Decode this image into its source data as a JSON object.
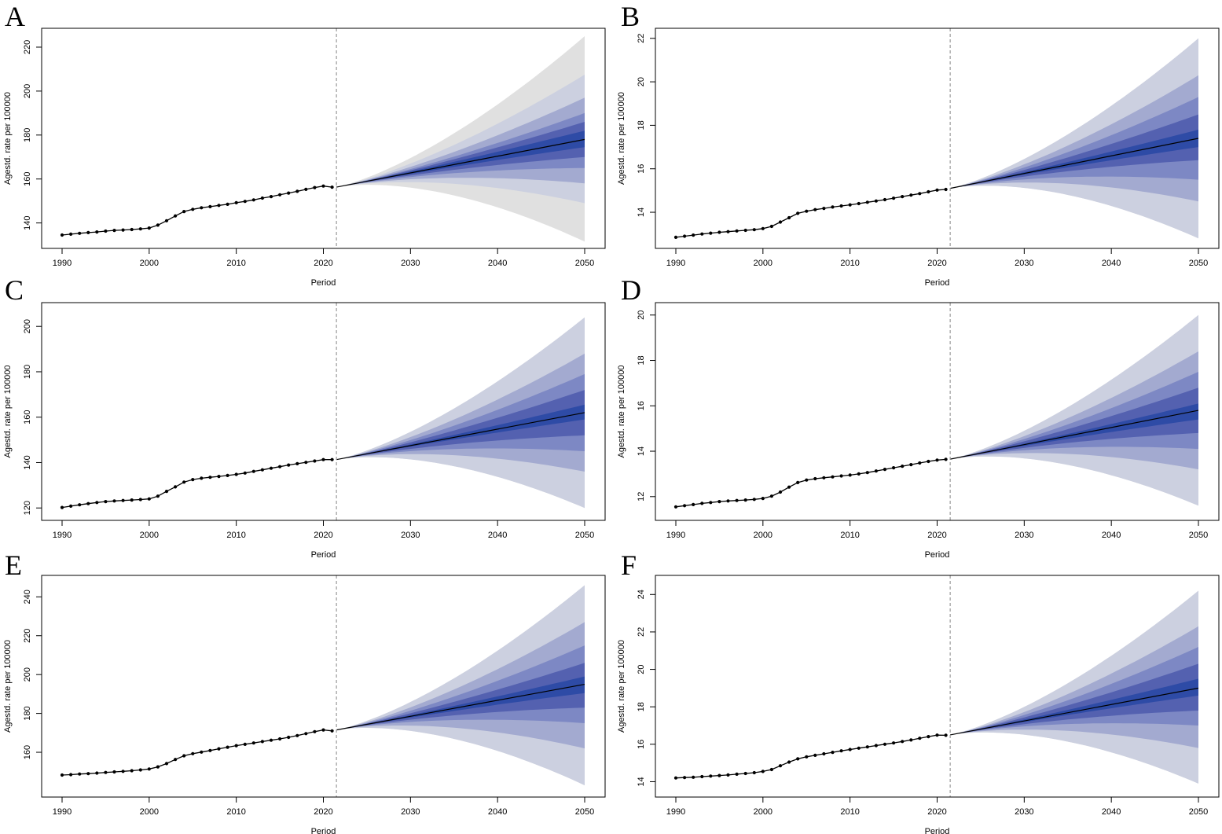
{
  "colors": {
    "band_outer": "#e0e0e0",
    "band_80": "#ccd0e0",
    "band_60": "#a3aad0",
    "band_40": "#7d88c4",
    "band_20": "#5461b0",
    "band_inner": "#2e4ba6",
    "line": "#000000",
    "vline": "#9a9a9a",
    "frame": "#000000"
  },
  "chart_data": [
    {
      "panel": "A",
      "type": "line",
      "xlabel": "Period",
      "ylabel": "Agestd. rate per 100000",
      "xlim": [
        1990,
        2050
      ],
      "ylim": [
        132,
        225
      ],
      "xticks": [
        1990,
        2000,
        2010,
        2020,
        2030,
        2040,
        2050
      ],
      "yticks": [
        140,
        160,
        180,
        200,
        220
      ],
      "projection_start": 2021.5,
      "observed": {
        "x": [
          1990,
          1991,
          1992,
          1993,
          1994,
          1995,
          1996,
          1997,
          1998,
          1999,
          2000,
          2001,
          2002,
          2003,
          2004,
          2005,
          2006,
          2007,
          2008,
          2009,
          2010,
          2011,
          2012,
          2013,
          2014,
          2015,
          2016,
          2017,
          2018,
          2019,
          2020,
          2021
        ],
        "y": [
          134.5,
          134.9,
          135.3,
          135.6,
          135.9,
          136.3,
          136.6,
          136.8,
          137.0,
          137.3,
          137.7,
          139.0,
          141.0,
          143.2,
          145.2,
          146.2,
          146.9,
          147.4,
          148.0,
          148.5,
          149.2,
          149.8,
          150.5,
          151.3,
          152.0,
          152.8,
          153.6,
          154.4,
          155.3,
          156.1,
          156.8,
          156.3
        ]
      },
      "forecast": {
        "x": [
          2021.5,
          2050
        ],
        "y": [
          156.3,
          178.0
        ],
        "intervals_at_2050": [
          {
            "lower": 174.5,
            "upper": 182.0
          },
          {
            "lower": 170.0,
            "upper": 186.0
          },
          {
            "lower": 165.0,
            "upper": 190.0
          },
          {
            "lower": 158.0,
            "upper": 197.0
          },
          {
            "lower": 149.0,
            "upper": 207.5
          },
          {
            "lower": 131.5,
            "upper": 225.0
          }
        ]
      }
    },
    {
      "panel": "B",
      "type": "line",
      "xlabel": "Period",
      "ylabel": "Agestd. rate per 100000",
      "xlim": [
        1990,
        2050
      ],
      "ylim": [
        12.7,
        22.1
      ],
      "xticks": [
        1990,
        2000,
        2010,
        2020,
        2030,
        2040,
        2050
      ],
      "yticks": [
        14,
        16,
        18,
        20,
        22
      ],
      "projection_start": 2021.5,
      "observed": {
        "x": [
          1990,
          1991,
          1992,
          1993,
          1994,
          1995,
          1996,
          1997,
          1998,
          1999,
          2000,
          2001,
          2002,
          2003,
          2004,
          2005,
          2006,
          2007,
          2008,
          2009,
          2010,
          2011,
          2012,
          2013,
          2014,
          2015,
          2016,
          2017,
          2018,
          2019,
          2020,
          2021
        ],
        "y": [
          12.85,
          12.9,
          12.95,
          13.0,
          13.04,
          13.08,
          13.11,
          13.14,
          13.17,
          13.2,
          13.25,
          13.35,
          13.55,
          13.75,
          13.95,
          14.05,
          14.12,
          14.18,
          14.24,
          14.29,
          14.34,
          14.4,
          14.46,
          14.52,
          14.58,
          14.65,
          14.72,
          14.79,
          14.86,
          14.94,
          15.02,
          15.05
        ]
      },
      "forecast": {
        "x": [
          2021.5,
          2050
        ],
        "y": [
          15.1,
          17.4
        ],
        "intervals_at_2050": [
          {
            "lower": 17.0,
            "upper": 17.8
          },
          {
            "lower": 16.4,
            "upper": 18.5
          },
          {
            "lower": 15.5,
            "upper": 19.3
          },
          {
            "lower": 14.5,
            "upper": 20.3
          },
          {
            "lower": 12.8,
            "upper": 22.0
          },
          {
            "lower": 12.8,
            "upper": 22.0
          }
        ]
      }
    },
    {
      "panel": "C",
      "type": "line",
      "xlabel": "Period",
      "ylabel": "Agestd. rate per 100000",
      "xlim": [
        1990,
        2050
      ],
      "ylim": [
        118,
        207
      ],
      "xticks": [
        1990,
        2000,
        2010,
        2020,
        2030,
        2040,
        2050
      ],
      "yticks": [
        120,
        140,
        160,
        180,
        200
      ],
      "projection_start": 2021.5,
      "observed": {
        "x": [
          1990,
          1991,
          1992,
          1993,
          1994,
          1995,
          1996,
          1997,
          1998,
          1999,
          2000,
          2001,
          2002,
          2003,
          2004,
          2005,
          2006,
          2007,
          2008,
          2009,
          2010,
          2011,
          2012,
          2013,
          2014,
          2015,
          2016,
          2017,
          2018,
          2019,
          2020,
          2021
        ],
        "y": [
          120.2,
          120.8,
          121.4,
          121.9,
          122.4,
          122.8,
          123.1,
          123.3,
          123.5,
          123.7,
          124.0,
          125.2,
          127.3,
          129.3,
          131.4,
          132.5,
          133.1,
          133.5,
          133.9,
          134.3,
          134.8,
          135.4,
          136.1,
          136.8,
          137.5,
          138.2,
          138.9,
          139.5,
          140.1,
          140.7,
          141.3,
          141.3
        ]
      },
      "forecast": {
        "x": [
          2021.5,
          2050
        ],
        "y": [
          141.3,
          162.0
        ],
        "intervals_at_2050": [
          {
            "lower": 159.0,
            "upper": 165.5
          },
          {
            "lower": 152.0,
            "upper": 172.0
          },
          {
            "lower": 145.0,
            "upper": 179.0
          },
          {
            "lower": 136.0,
            "upper": 188.0
          },
          {
            "lower": 120.0,
            "upper": 204.0
          },
          {
            "lower": 120.0,
            "upper": 204.0
          }
        ]
      }
    },
    {
      "panel": "D",
      "type": "line",
      "xlabel": "Period",
      "ylabel": "Agestd. rate per 100000",
      "xlim": [
        1990,
        2050
      ],
      "ylim": [
        11.3,
        20.2
      ],
      "xticks": [
        1990,
        2000,
        2010,
        2020,
        2030,
        2040,
        2050
      ],
      "yticks": [
        12,
        14,
        16,
        18,
        20
      ],
      "projection_start": 2021.5,
      "observed": {
        "x": [
          1990,
          1991,
          1992,
          1993,
          1994,
          1995,
          1996,
          1997,
          1998,
          1999,
          2000,
          2001,
          2002,
          2003,
          2004,
          2005,
          2006,
          2007,
          2008,
          2009,
          2010,
          2011,
          2012,
          2013,
          2014,
          2015,
          2016,
          2017,
          2018,
          2019,
          2020,
          2021
        ],
        "y": [
          11.55,
          11.6,
          11.65,
          11.7,
          11.74,
          11.78,
          11.81,
          11.83,
          11.85,
          11.88,
          11.92,
          12.02,
          12.2,
          12.42,
          12.62,
          12.73,
          12.79,
          12.83,
          12.87,
          12.91,
          12.95,
          13.0,
          13.06,
          13.13,
          13.2,
          13.27,
          13.34,
          13.41,
          13.48,
          13.55,
          13.61,
          13.64
        ]
      },
      "forecast": {
        "x": [
          2021.5,
          2050
        ],
        "y": [
          13.65,
          15.8
        ],
        "intervals_at_2050": [
          {
            "lower": 15.4,
            "upper": 16.1
          },
          {
            "lower": 14.8,
            "upper": 16.8
          },
          {
            "lower": 14.1,
            "upper": 17.5
          },
          {
            "lower": 13.2,
            "upper": 18.4
          },
          {
            "lower": 11.6,
            "upper": 20.0
          },
          {
            "lower": 11.6,
            "upper": 20.0
          }
        ]
      }
    },
    {
      "panel": "E",
      "type": "line",
      "xlabel": "Period",
      "ylabel": "Agestd. rate per 100000",
      "xlim": [
        1990,
        2050
      ],
      "ylim": [
        141,
        247
      ],
      "xticks": [
        1990,
        2000,
        2010,
        2020,
        2030,
        2040,
        2050
      ],
      "yticks": [
        140,
        160,
        180,
        200,
        220,
        240
      ],
      "projection_start": 2021.5,
      "observed": {
        "x": [
          1990,
          1991,
          1992,
          1993,
          1994,
          1995,
          1996,
          1997,
          1998,
          1999,
          2000,
          2001,
          2002,
          2003,
          2004,
          2005,
          2006,
          2007,
          2008,
          2009,
          2010,
          2011,
          2012,
          2013,
          2014,
          2015,
          2016,
          2017,
          2018,
          2019,
          2020,
          2021
        ],
        "y": [
          148.3,
          148.5,
          148.8,
          149.0,
          149.3,
          149.6,
          149.9,
          150.2,
          150.5,
          150.9,
          151.4,
          152.5,
          154.2,
          156.3,
          158.2,
          159.3,
          160.1,
          160.9,
          161.8,
          162.6,
          163.4,
          164.1,
          164.8,
          165.5,
          166.2,
          166.9,
          167.7,
          168.6,
          169.6,
          170.6,
          171.5,
          171.0
        ]
      },
      "forecast": {
        "x": [
          2021.5,
          2050
        ],
        "y": [
          171.5,
          195.0
        ],
        "intervals_at_2050": [
          {
            "lower": 190.5,
            "upper": 199.0
          },
          {
            "lower": 183.0,
            "upper": 206.0
          },
          {
            "lower": 175.0,
            "upper": 215.0
          },
          {
            "lower": 162.0,
            "upper": 227.0
          },
          {
            "lower": 143.0,
            "upper": 246.0
          },
          {
            "lower": 143.0,
            "upper": 246.0
          }
        ]
      }
    },
    {
      "panel": "F",
      "type": "line",
      "xlabel": "Period",
      "ylabel": "Agestd. rate per 100000",
      "xlim": [
        1990,
        2050
      ],
      "ylim": [
        13.6,
        24.6
      ],
      "xticks": [
        1990,
        2000,
        2010,
        2020,
        2030,
        2040,
        2050
      ],
      "yticks": [
        14,
        16,
        18,
        20,
        22,
        24
      ],
      "projection_start": 2021.5,
      "observed": {
        "x": [
          1990,
          1991,
          1992,
          1993,
          1994,
          1995,
          1996,
          1997,
          1998,
          1999,
          2000,
          2001,
          2002,
          2003,
          2004,
          2005,
          2006,
          2007,
          2008,
          2009,
          2010,
          2011,
          2012,
          2013,
          2014,
          2015,
          2016,
          2017,
          2018,
          2019,
          2020,
          2021
        ],
        "y": [
          14.2,
          14.22,
          14.24,
          14.27,
          14.3,
          14.33,
          14.36,
          14.4,
          14.44,
          14.48,
          14.55,
          14.65,
          14.85,
          15.05,
          15.22,
          15.33,
          15.41,
          15.49,
          15.57,
          15.65,
          15.72,
          15.79,
          15.86,
          15.93,
          16.0,
          16.07,
          16.15,
          16.23,
          16.32,
          16.41,
          16.49,
          16.48
        ]
      },
      "forecast": {
        "x": [
          2021.5,
          2050
        ],
        "y": [
          16.5,
          19.0
        ],
        "intervals_at_2050": [
          {
            "lower": 18.6,
            "upper": 19.5
          },
          {
            "lower": 17.8,
            "upper": 20.3
          },
          {
            "lower": 17.0,
            "upper": 21.2
          },
          {
            "lower": 15.8,
            "upper": 22.3
          },
          {
            "lower": 13.9,
            "upper": 24.2
          },
          {
            "lower": 13.9,
            "upper": 24.2
          }
        ]
      }
    }
  ]
}
